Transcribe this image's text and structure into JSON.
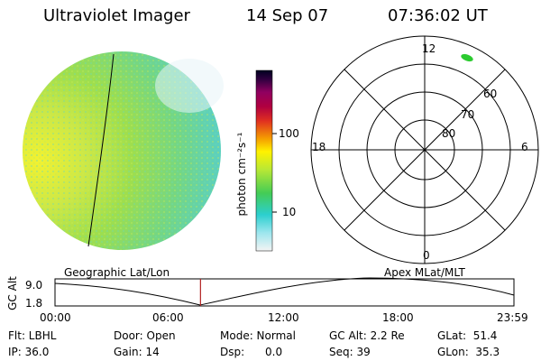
{
  "header": {
    "instrument": "Ultraviolet Imager",
    "date": "14 Sep 07",
    "time": "07:36:02 UT"
  },
  "colorbar": {
    "label": "photon cm⁻²s⁻¹",
    "ticks": [
      "100",
      "10"
    ]
  },
  "polar": {
    "mlt_labels": {
      "top": "12",
      "bottom": "0",
      "left": "18",
      "right": "6"
    },
    "lat_labels": [
      "60",
      "70",
      "80"
    ]
  },
  "timeline": {
    "left_caption": "Geographic Lat/Lon",
    "right_caption": "Apex  MLat/MLT",
    "ylabel": "GC Alt",
    "y_ticks": [
      "9.0",
      "1.8"
    ],
    "x_ticks": [
      "00:00",
      "06:00",
      "12:00",
      "18:00",
      "23:59"
    ],
    "current_time_fraction": 0.317
  },
  "status": {
    "flt": "Flt: LBHL",
    "ip": "IP: 36.0",
    "door": "Door: Open",
    "gain": "Gain: 14",
    "mode": "Mode: Normal",
    "dsp": "Dsp:      0.0",
    "gcalt": "GC Alt: 2.2 Re",
    "seq": "Seq: 39",
    "glat": "GLat:  51.4",
    "glon": "GLon:  35.3"
  }
}
